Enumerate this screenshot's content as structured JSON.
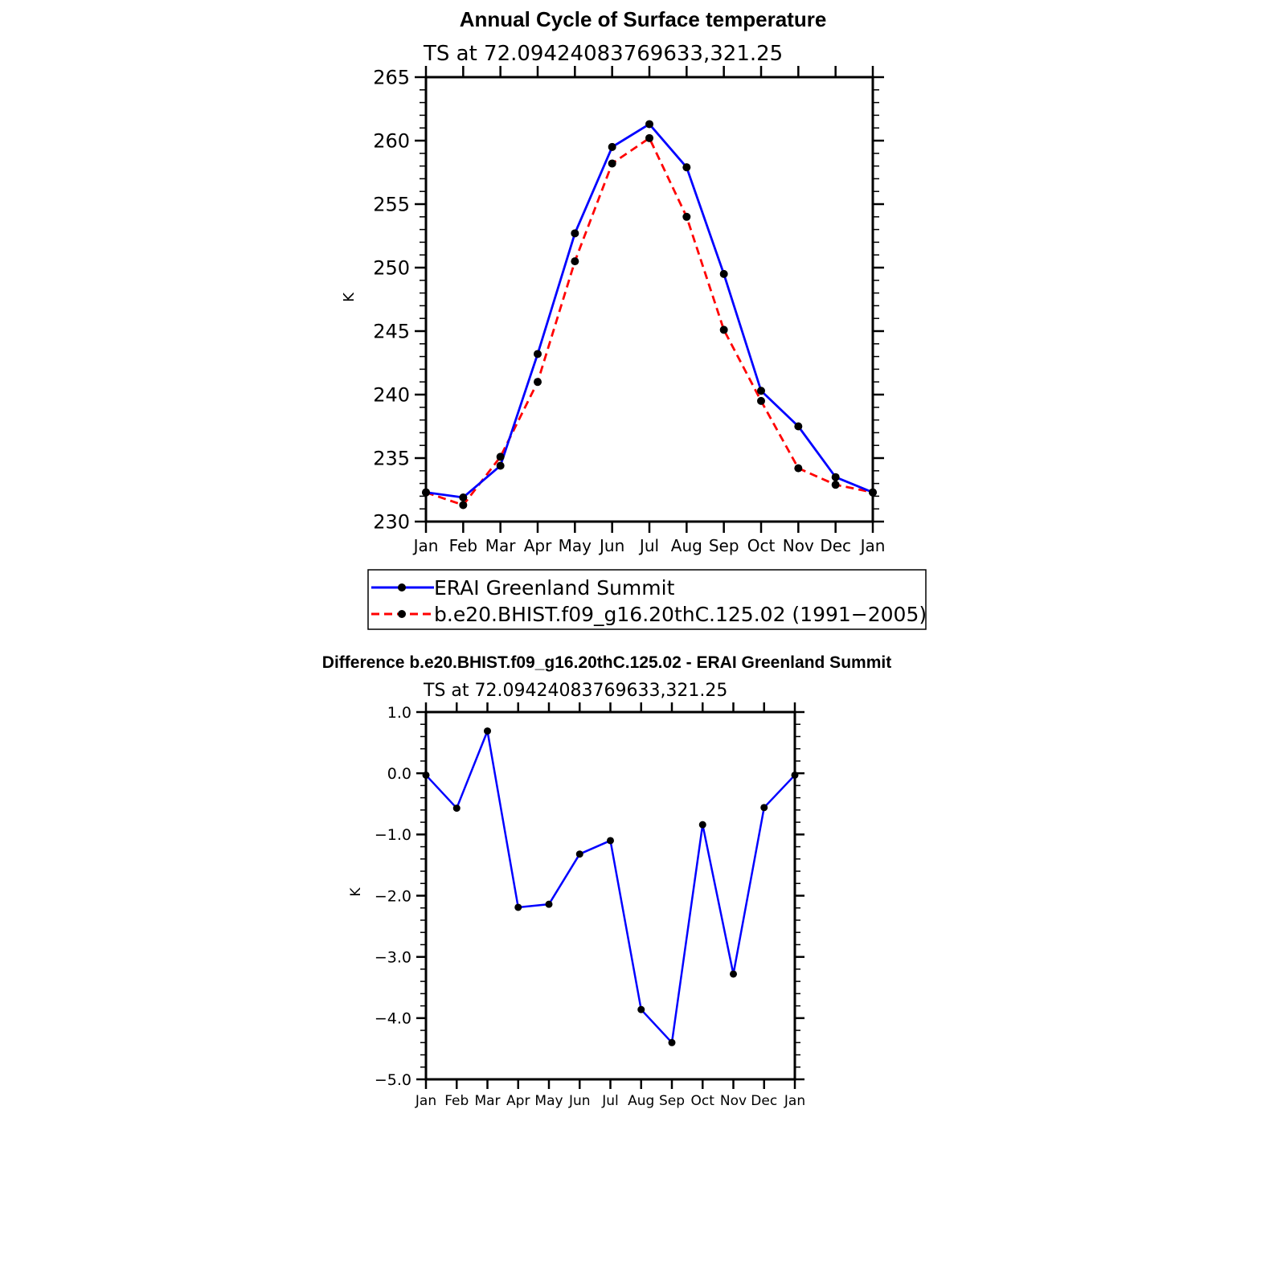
{
  "chart_data": [
    {
      "type": "line",
      "title": "Annual Cycle of Surface temperature",
      "subtitle": "TS at 72.09424083769633,321.25",
      "ylabel": "K",
      "xlabel": "",
      "categories": [
        "Jan",
        "Feb",
        "Mar",
        "Apr",
        "May",
        "Jun",
        "Jul",
        "Aug",
        "Sep",
        "Oct",
        "Nov",
        "Dec",
        "Jan"
      ],
      "ylim": [
        230,
        265
      ],
      "yticks": [
        "230",
        "235",
        "240",
        "245",
        "250",
        "255",
        "260",
        "265"
      ],
      "series": [
        {
          "name": "ERAI Greenland Summit",
          "color": "#0000ff",
          "dash": "solid",
          "values": [
            232.3,
            231.9,
            234.4,
            243.2,
            252.7,
            259.5,
            261.3,
            257.9,
            249.5,
            240.3,
            237.5,
            233.5,
            232.3
          ]
        },
        {
          "name": "b.e20.BHIST.f09_g16.20thC.125.02 (1991−2005)",
          "color": "#ff0000",
          "dash": "dashed",
          "values": [
            232.3,
            231.3,
            235.1,
            241.0,
            250.5,
            258.2,
            260.2,
            254.0,
            245.1,
            239.5,
            234.2,
            232.9,
            232.3
          ]
        }
      ],
      "legend_position": "bottom"
    },
    {
      "type": "line",
      "title": "Difference b.e20.BHIST.f09_g16.20thC.125.02 - ERAI Greenland Summit",
      "subtitle": "TS at 72.09424083769633,321.25",
      "ylabel": "K",
      "xlabel": "",
      "categories": [
        "Jan",
        "Feb",
        "Mar",
        "Apr",
        "May",
        "Jun",
        "Jul",
        "Aug",
        "Sep",
        "Oct",
        "Nov",
        "Dec",
        "Jan"
      ],
      "ylim": [
        -5.0,
        1.0
      ],
      "yticks": [
        "−5.0",
        "−4.0",
        "−3.0",
        "−2.0",
        "−1.0",
        "0.0",
        "1.0"
      ],
      "series": [
        {
          "color": "#0000ff",
          "dash": "solid",
          "values": [
            -0.03,
            -0.57,
            0.69,
            -2.19,
            -2.14,
            -1.32,
            -1.1,
            -3.86,
            -4.4,
            -0.84,
            -3.28,
            -0.56,
            -0.03
          ]
        }
      ]
    }
  ]
}
